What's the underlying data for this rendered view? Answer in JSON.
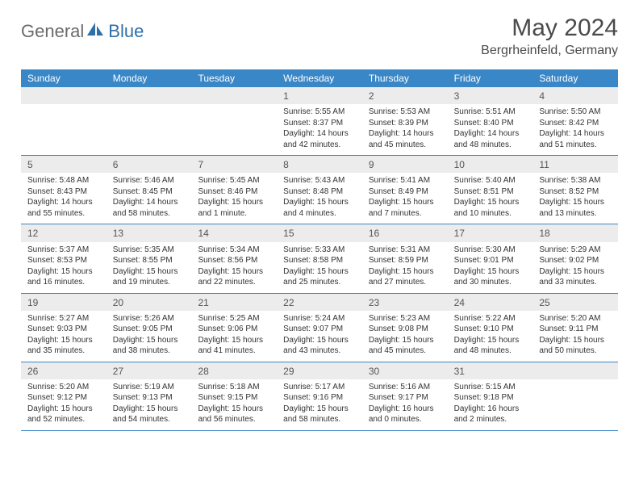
{
  "logo": {
    "part1": "General",
    "part2": "Blue"
  },
  "title": "May 2024",
  "location": "Bergrheinfeld, Germany",
  "colors": {
    "header_bg": "#3a87c7",
    "header_text": "#ffffff",
    "daynum_bg": "#ececec",
    "row_border": "#3a87c7",
    "logo_gray": "#6b6b6b",
    "logo_blue": "#2f6fa8"
  },
  "weekdays": [
    "Sunday",
    "Monday",
    "Tuesday",
    "Wednesday",
    "Thursday",
    "Friday",
    "Saturday"
  ],
  "weeks": [
    [
      null,
      null,
      null,
      {
        "n": "1",
        "sr": "Sunrise: 5:55 AM",
        "ss": "Sunset: 8:37 PM",
        "d1": "Daylight: 14 hours",
        "d2": "and 42 minutes."
      },
      {
        "n": "2",
        "sr": "Sunrise: 5:53 AM",
        "ss": "Sunset: 8:39 PM",
        "d1": "Daylight: 14 hours",
        "d2": "and 45 minutes."
      },
      {
        "n": "3",
        "sr": "Sunrise: 5:51 AM",
        "ss": "Sunset: 8:40 PM",
        "d1": "Daylight: 14 hours",
        "d2": "and 48 minutes."
      },
      {
        "n": "4",
        "sr": "Sunrise: 5:50 AM",
        "ss": "Sunset: 8:42 PM",
        "d1": "Daylight: 14 hours",
        "d2": "and 51 minutes."
      }
    ],
    [
      {
        "n": "5",
        "sr": "Sunrise: 5:48 AM",
        "ss": "Sunset: 8:43 PM",
        "d1": "Daylight: 14 hours",
        "d2": "and 55 minutes."
      },
      {
        "n": "6",
        "sr": "Sunrise: 5:46 AM",
        "ss": "Sunset: 8:45 PM",
        "d1": "Daylight: 14 hours",
        "d2": "and 58 minutes."
      },
      {
        "n": "7",
        "sr": "Sunrise: 5:45 AM",
        "ss": "Sunset: 8:46 PM",
        "d1": "Daylight: 15 hours",
        "d2": "and 1 minute."
      },
      {
        "n": "8",
        "sr": "Sunrise: 5:43 AM",
        "ss": "Sunset: 8:48 PM",
        "d1": "Daylight: 15 hours",
        "d2": "and 4 minutes."
      },
      {
        "n": "9",
        "sr": "Sunrise: 5:41 AM",
        "ss": "Sunset: 8:49 PM",
        "d1": "Daylight: 15 hours",
        "d2": "and 7 minutes."
      },
      {
        "n": "10",
        "sr": "Sunrise: 5:40 AM",
        "ss": "Sunset: 8:51 PM",
        "d1": "Daylight: 15 hours",
        "d2": "and 10 minutes."
      },
      {
        "n": "11",
        "sr": "Sunrise: 5:38 AM",
        "ss": "Sunset: 8:52 PM",
        "d1": "Daylight: 15 hours",
        "d2": "and 13 minutes."
      }
    ],
    [
      {
        "n": "12",
        "sr": "Sunrise: 5:37 AM",
        "ss": "Sunset: 8:53 PM",
        "d1": "Daylight: 15 hours",
        "d2": "and 16 minutes."
      },
      {
        "n": "13",
        "sr": "Sunrise: 5:35 AM",
        "ss": "Sunset: 8:55 PM",
        "d1": "Daylight: 15 hours",
        "d2": "and 19 minutes."
      },
      {
        "n": "14",
        "sr": "Sunrise: 5:34 AM",
        "ss": "Sunset: 8:56 PM",
        "d1": "Daylight: 15 hours",
        "d2": "and 22 minutes."
      },
      {
        "n": "15",
        "sr": "Sunrise: 5:33 AM",
        "ss": "Sunset: 8:58 PM",
        "d1": "Daylight: 15 hours",
        "d2": "and 25 minutes."
      },
      {
        "n": "16",
        "sr": "Sunrise: 5:31 AM",
        "ss": "Sunset: 8:59 PM",
        "d1": "Daylight: 15 hours",
        "d2": "and 27 minutes."
      },
      {
        "n": "17",
        "sr": "Sunrise: 5:30 AM",
        "ss": "Sunset: 9:01 PM",
        "d1": "Daylight: 15 hours",
        "d2": "and 30 minutes."
      },
      {
        "n": "18",
        "sr": "Sunrise: 5:29 AM",
        "ss": "Sunset: 9:02 PM",
        "d1": "Daylight: 15 hours",
        "d2": "and 33 minutes."
      }
    ],
    [
      {
        "n": "19",
        "sr": "Sunrise: 5:27 AM",
        "ss": "Sunset: 9:03 PM",
        "d1": "Daylight: 15 hours",
        "d2": "and 35 minutes."
      },
      {
        "n": "20",
        "sr": "Sunrise: 5:26 AM",
        "ss": "Sunset: 9:05 PM",
        "d1": "Daylight: 15 hours",
        "d2": "and 38 minutes."
      },
      {
        "n": "21",
        "sr": "Sunrise: 5:25 AM",
        "ss": "Sunset: 9:06 PM",
        "d1": "Daylight: 15 hours",
        "d2": "and 41 minutes."
      },
      {
        "n": "22",
        "sr": "Sunrise: 5:24 AM",
        "ss": "Sunset: 9:07 PM",
        "d1": "Daylight: 15 hours",
        "d2": "and 43 minutes."
      },
      {
        "n": "23",
        "sr": "Sunrise: 5:23 AM",
        "ss": "Sunset: 9:08 PM",
        "d1": "Daylight: 15 hours",
        "d2": "and 45 minutes."
      },
      {
        "n": "24",
        "sr": "Sunrise: 5:22 AM",
        "ss": "Sunset: 9:10 PM",
        "d1": "Daylight: 15 hours",
        "d2": "and 48 minutes."
      },
      {
        "n": "25",
        "sr": "Sunrise: 5:20 AM",
        "ss": "Sunset: 9:11 PM",
        "d1": "Daylight: 15 hours",
        "d2": "and 50 minutes."
      }
    ],
    [
      {
        "n": "26",
        "sr": "Sunrise: 5:20 AM",
        "ss": "Sunset: 9:12 PM",
        "d1": "Daylight: 15 hours",
        "d2": "and 52 minutes."
      },
      {
        "n": "27",
        "sr": "Sunrise: 5:19 AM",
        "ss": "Sunset: 9:13 PM",
        "d1": "Daylight: 15 hours",
        "d2": "and 54 minutes."
      },
      {
        "n": "28",
        "sr": "Sunrise: 5:18 AM",
        "ss": "Sunset: 9:15 PM",
        "d1": "Daylight: 15 hours",
        "d2": "and 56 minutes."
      },
      {
        "n": "29",
        "sr": "Sunrise: 5:17 AM",
        "ss": "Sunset: 9:16 PM",
        "d1": "Daylight: 15 hours",
        "d2": "and 58 minutes."
      },
      {
        "n": "30",
        "sr": "Sunrise: 5:16 AM",
        "ss": "Sunset: 9:17 PM",
        "d1": "Daylight: 16 hours",
        "d2": "and 0 minutes."
      },
      {
        "n": "31",
        "sr": "Sunrise: 5:15 AM",
        "ss": "Sunset: 9:18 PM",
        "d1": "Daylight: 16 hours",
        "d2": "and 2 minutes."
      },
      null
    ]
  ]
}
